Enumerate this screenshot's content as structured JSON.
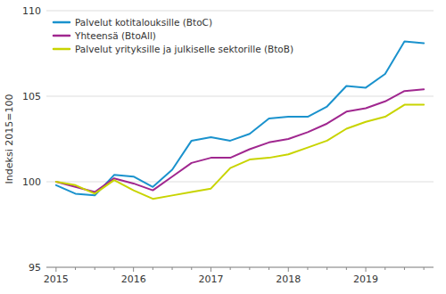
{
  "chart_data": {
    "type": "line",
    "y_label": "Indeksi 2015=100",
    "categories": [
      "2015",
      null,
      null,
      null,
      "2016",
      null,
      null,
      null,
      "2017",
      null,
      null,
      null,
      "2018",
      null,
      null,
      null,
      "2019",
      null,
      null,
      null
    ],
    "series": [
      {
        "name": "Palvelut kotitalouksille (BtoC)",
        "color": "#1A92CD",
        "values": [
          99.8,
          99.3,
          99.2,
          100.4,
          100.3,
          99.7,
          100.7,
          102.4,
          102.6,
          102.4,
          102.8,
          103.7,
          103.8,
          103.8,
          104.4,
          105.6,
          105.5,
          106.3,
          108.2,
          108.1
        ]
      },
      {
        "name": "Yhteensä (BtoAll)",
        "color": "#A0278F",
        "values": [
          100.0,
          99.7,
          99.4,
          100.2,
          99.9,
          99.5,
          100.3,
          101.1,
          101.4,
          101.4,
          101.9,
          102.3,
          102.5,
          102.9,
          103.4,
          104.1,
          104.3,
          104.7,
          105.3,
          105.4
        ]
      },
      {
        "name": "Palvelut yrityksille ja julkiselle sektorille (BtoB)",
        "color": "#C8D400",
        "values": [
          100.0,
          99.8,
          99.3,
          100.1,
          99.5,
          99.0,
          99.2,
          99.4,
          99.6,
          100.8,
          101.3,
          101.4,
          101.6,
          102.0,
          102.4,
          103.1,
          103.5,
          103.8,
          104.5,
          104.5
        ]
      }
    ],
    "ylim": [
      95,
      110
    ],
    "yticks": [
      95,
      100,
      105,
      110
    ],
    "grid": true,
    "legend": "upper left"
  }
}
